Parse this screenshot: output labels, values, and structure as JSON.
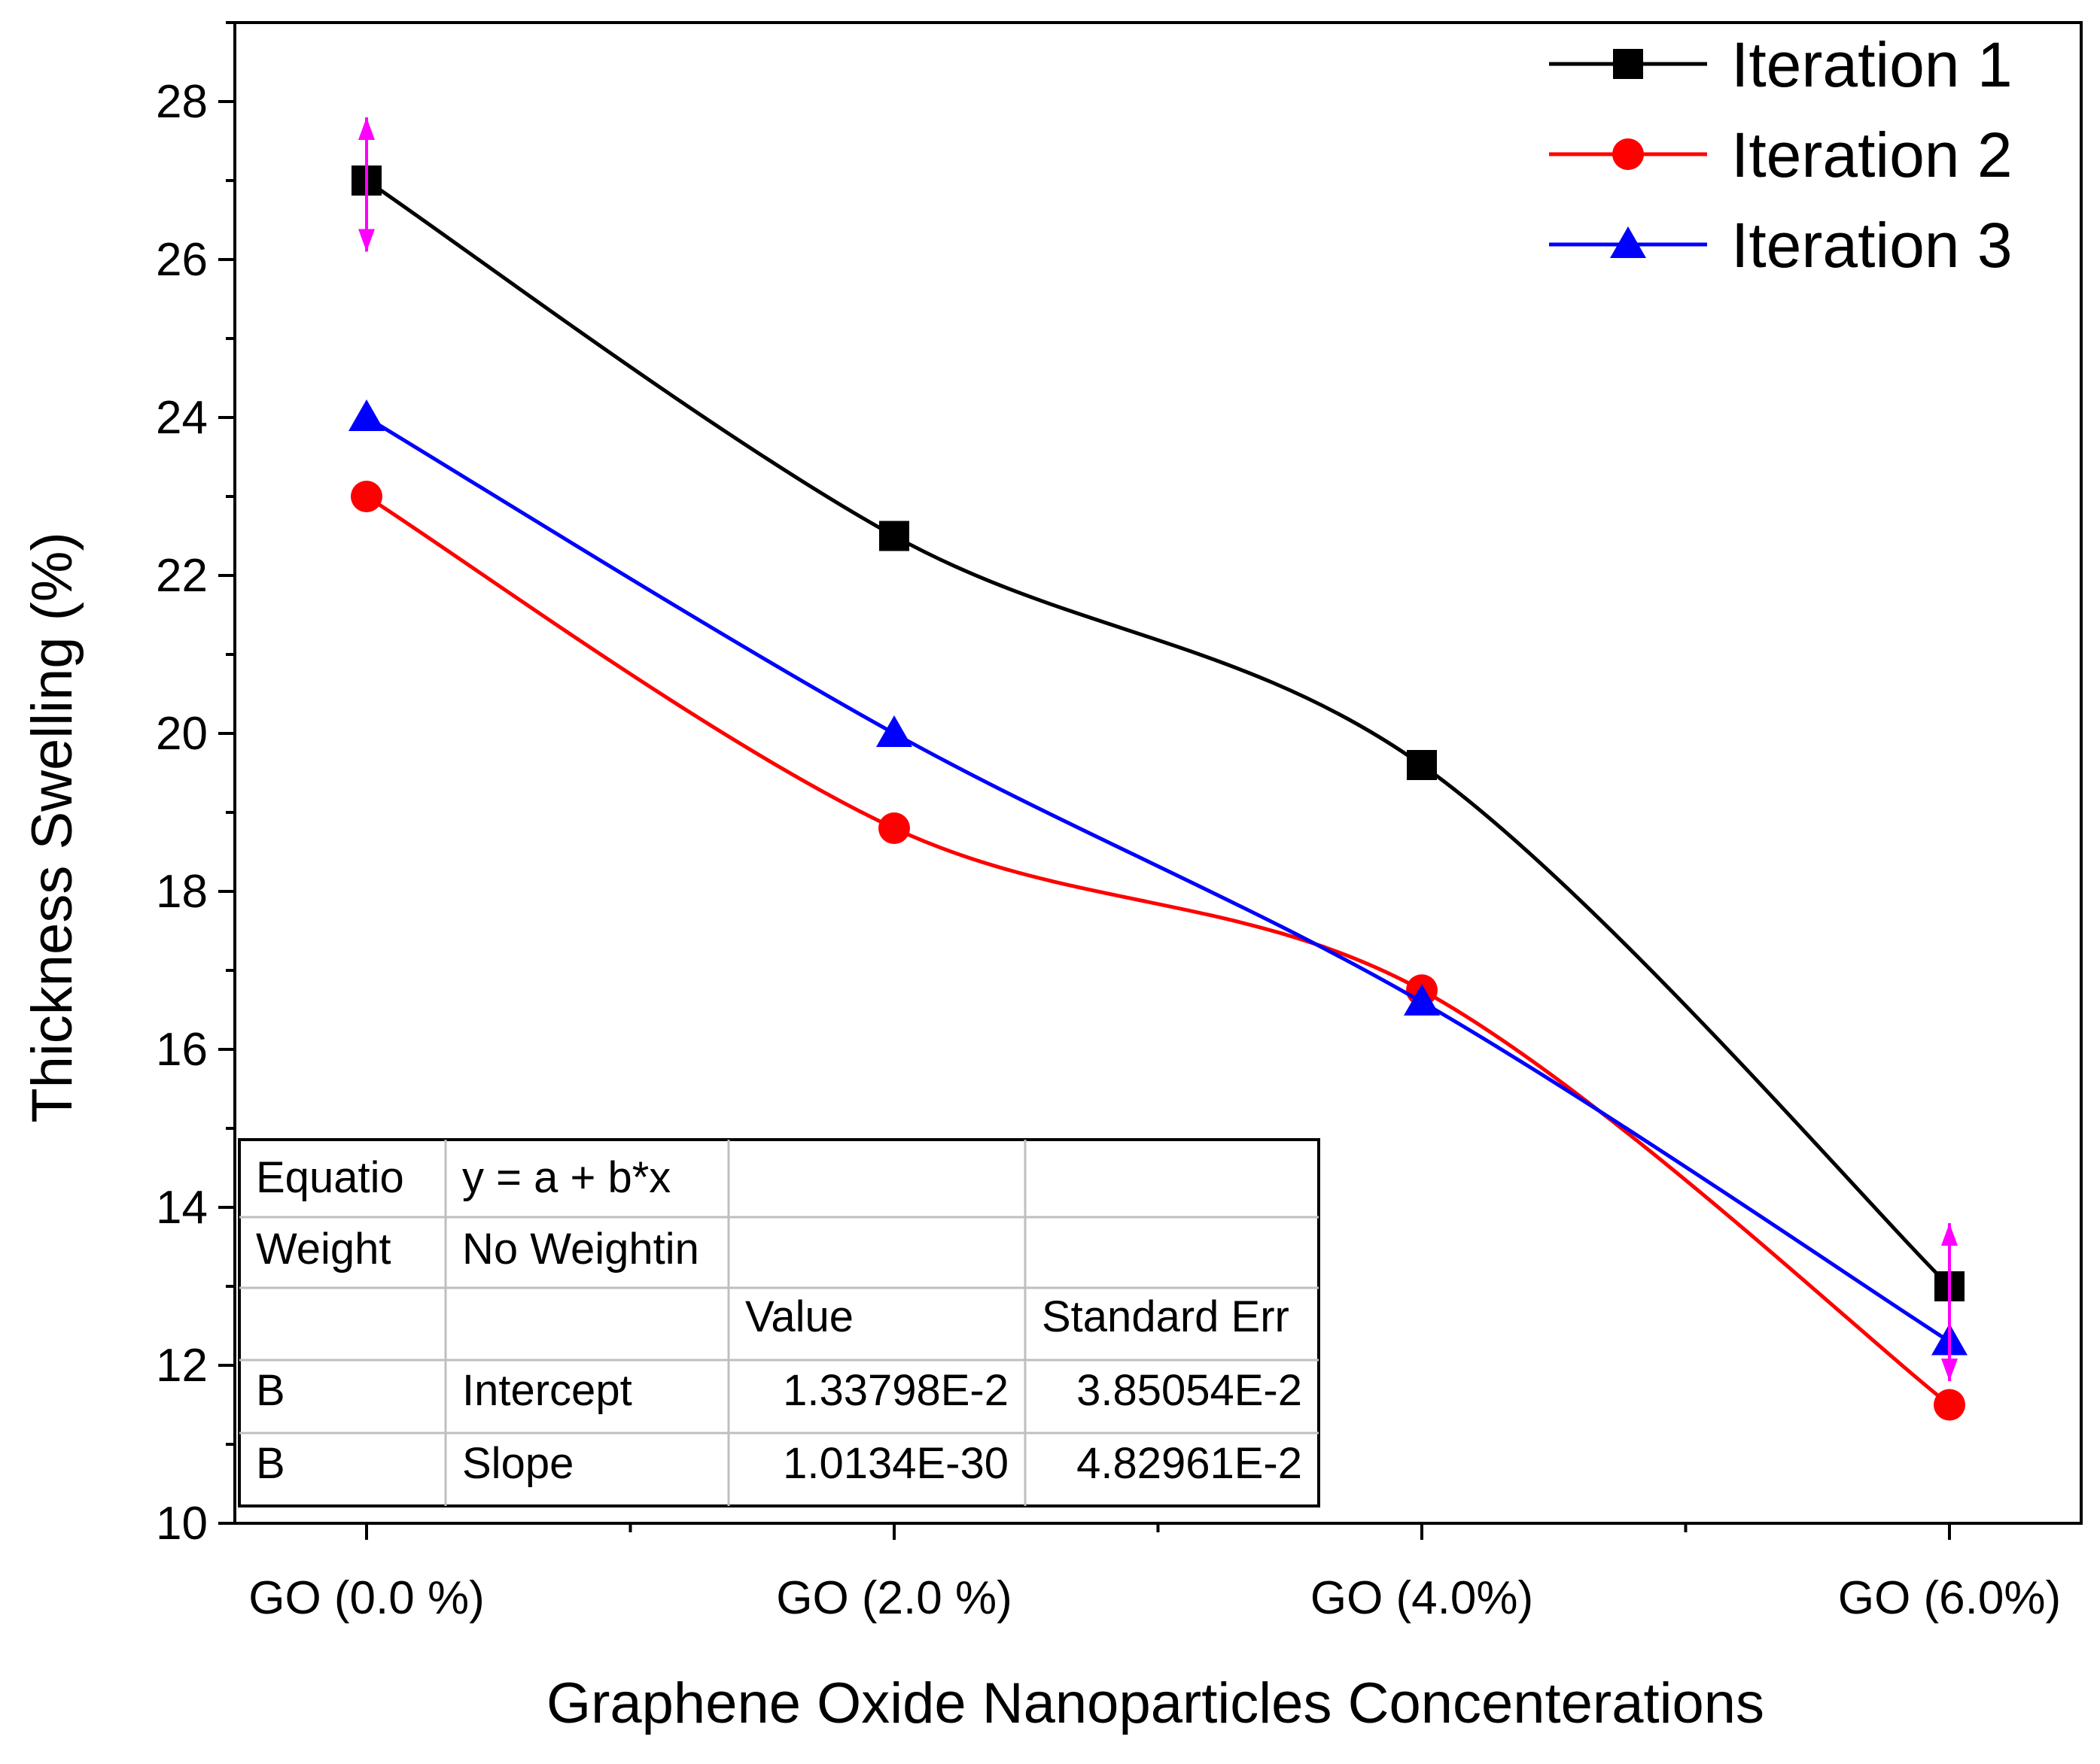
{
  "chart_data": {
    "type": "line",
    "title": "",
    "xlabel": "Graphene Oxide Nanoparticles Concenterations",
    "ylabel": "Thickness Swelling (%)",
    "categories": [
      "GO (0.0 %)",
      "GO (2.0 %)",
      "GO (4.0%)",
      "GO (6.0%)"
    ],
    "ylim": [
      10,
      29
    ],
    "yticks": [
      10,
      12,
      14,
      16,
      18,
      20,
      22,
      24,
      26,
      28
    ],
    "ytick_labels": [
      "10",
      "12",
      "14",
      "16",
      "18",
      "20",
      "22",
      "24",
      "26",
      "28"
    ],
    "grid": false,
    "legend_position": "top-right",
    "series": [
      {
        "name": "Iteration 1",
        "color": "#000000",
        "marker": "square",
        "values": [
          27.0,
          22.5,
          19.6,
          13.0
        ]
      },
      {
        "name": "Iteration 2",
        "color": "#ff0000",
        "marker": "circle",
        "values": [
          23.0,
          18.8,
          16.75,
          11.5
        ]
      },
      {
        "name": "Iteration 3",
        "color": "#0000ff",
        "marker": "triangle",
        "values": [
          24.0,
          20.0,
          16.6,
          12.3
        ]
      }
    ],
    "error_bars": {
      "color": "#ff00ff",
      "items": [
        {
          "category_index": 0,
          "value": 27.0,
          "low": 26.1,
          "high": 27.8
        },
        {
          "category_index": 3,
          "value": 13.0,
          "low": 11.8,
          "high": 13.8
        }
      ]
    },
    "table": {
      "rows": [
        [
          "Equatio",
          "y = a + b*x",
          "",
          ""
        ],
        [
          "Weight",
          "No Weightin",
          "",
          ""
        ],
        [
          "",
          "",
          "Value",
          "Standard Err"
        ],
        [
          "B",
          "Intercept",
          "1.33798E-2",
          "3.85054E-2"
        ],
        [
          "B",
          "Slope",
          "1.0134E-30",
          "4.82961E-2"
        ]
      ]
    }
  }
}
